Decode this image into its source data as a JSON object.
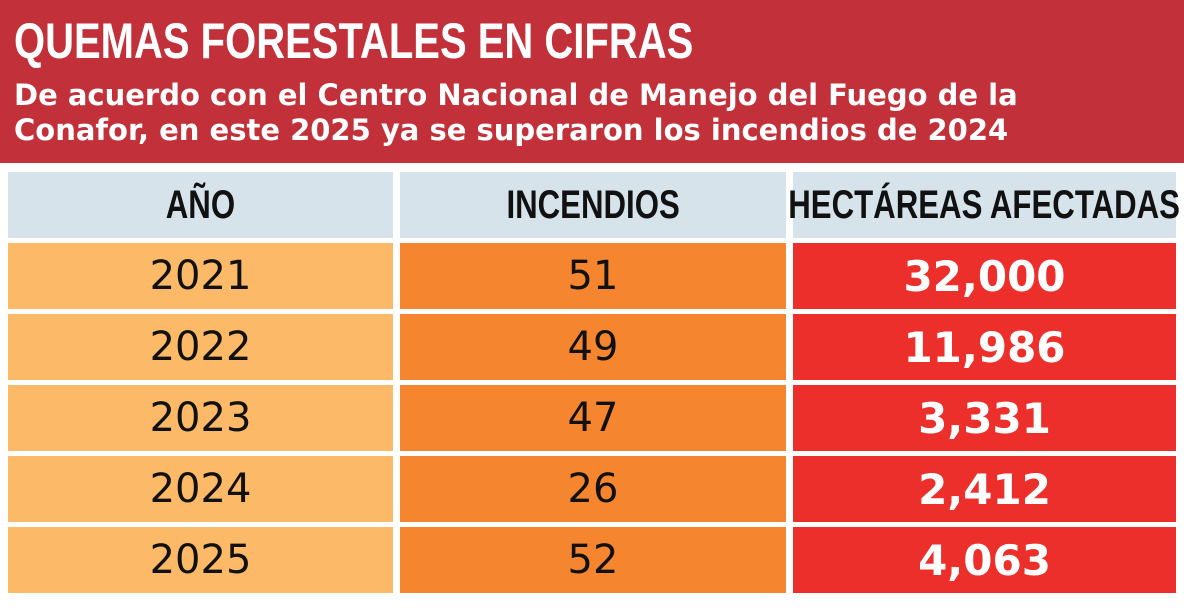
{
  "header": {
    "title": "QUEMAS FORESTALES EN CIFRAS",
    "subtitle": "De acuerdo con el Centro Nacional de Manejo del Fuego de la Conafor, en este 2025 ya se superaron los incendios de 2024"
  },
  "colors": {
    "banner": "#c2313a",
    "header_row": "#d6e3ea",
    "year_col": "#fcb968",
    "fires_col": "#f5862f",
    "hectares_col": "#ec2f2b"
  },
  "chart_data": {
    "type": "table",
    "title": "QUEMAS FORESTALES EN CIFRAS",
    "columns": [
      "AÑO",
      "INCENDIOS",
      "HECTÁREAS AFECTADAS"
    ],
    "rows": [
      [
        "2021",
        "51",
        "32,000"
      ],
      [
        "2022",
        "49",
        "11,986"
      ],
      [
        "2023",
        "47",
        "3,331"
      ],
      [
        "2024",
        "26",
        "2,412"
      ],
      [
        "2025",
        "52",
        "4,063"
      ]
    ]
  }
}
